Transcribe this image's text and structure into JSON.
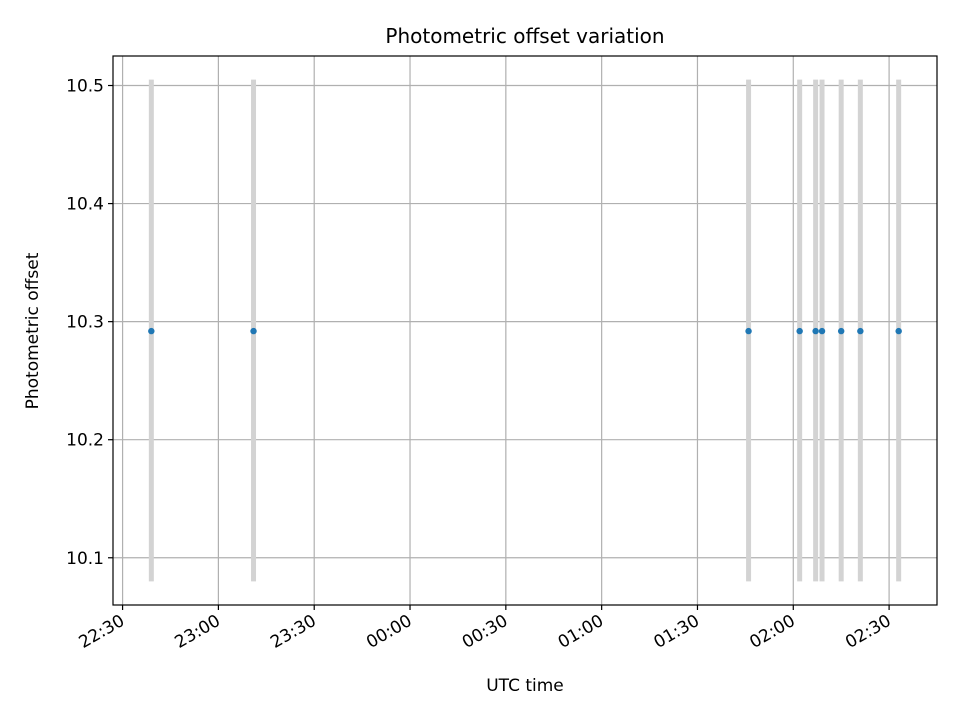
{
  "chart_data": {
    "type": "scatter",
    "title": "Photometric offset variation",
    "xlabel": "UTC time",
    "ylabel": "Photometric offset",
    "x_ticks": [
      "22:30",
      "23:00",
      "23:30",
      "00:00",
      "00:30",
      "01:00",
      "01:30",
      "02:00",
      "02:30"
    ],
    "x_range": [
      "22:27",
      "02:45"
    ],
    "y_ticks": [
      "10.1",
      "10.2",
      "10.3",
      "10.4",
      "10.5"
    ],
    "ylim": [
      10.06,
      10.525
    ],
    "grid": true,
    "errorbar_color": "#d3d3d3",
    "point_color": "#1f77b4",
    "points": [
      {
        "x": "22:39",
        "y": 10.292,
        "ymin": 10.08,
        "ymax": 10.505
      },
      {
        "x": "23:11",
        "y": 10.292,
        "ymin": 10.08,
        "ymax": 10.505
      },
      {
        "x": "01:46",
        "y": 10.292,
        "ymin": 10.08,
        "ymax": 10.505
      },
      {
        "x": "02:02",
        "y": 10.292,
        "ymin": 10.08,
        "ymax": 10.505
      },
      {
        "x": "02:07",
        "y": 10.292,
        "ymin": 10.08,
        "ymax": 10.505
      },
      {
        "x": "02:09",
        "y": 10.292,
        "ymin": 10.08,
        "ymax": 10.505
      },
      {
        "x": "02:15",
        "y": 10.292,
        "ymin": 10.08,
        "ymax": 10.505
      },
      {
        "x": "02:21",
        "y": 10.292,
        "ymin": 10.08,
        "ymax": 10.505
      },
      {
        "x": "02:33",
        "y": 10.292,
        "ymin": 10.08,
        "ymax": 10.505
      }
    ]
  }
}
